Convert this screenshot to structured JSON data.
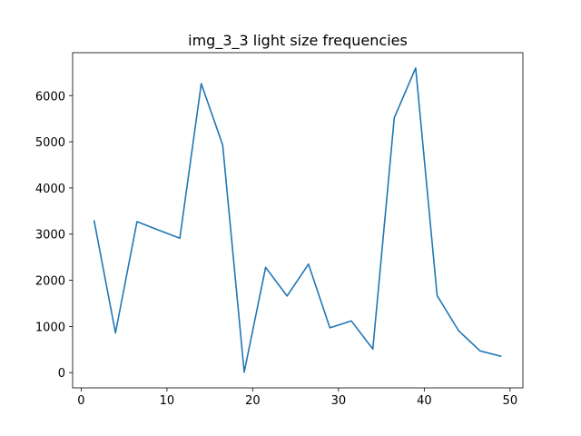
{
  "chart_data": {
    "type": "line",
    "title": "img_3_3 light size frequencies",
    "xlabel": "",
    "ylabel": "",
    "xlim": [
      -1,
      51.5
    ],
    "ylim": [
      -330,
      6930
    ],
    "xticks": [
      0,
      10,
      20,
      30,
      40,
      50
    ],
    "yticks": [
      0,
      1000,
      2000,
      3000,
      4000,
      5000,
      6000
    ],
    "grid": false,
    "series": [
      {
        "color": "#1f77b4",
        "x": [
          1.5,
          4,
          6.5,
          9,
          11.5,
          14,
          16.5,
          19,
          21.5,
          24,
          26.5,
          29,
          31.5,
          34,
          36.5,
          39,
          41.5,
          44,
          46.5,
          49
        ],
        "y": [
          3300,
          860,
          3270,
          3090,
          2910,
          6260,
          4930,
          10,
          2280,
          1660,
          2350,
          970,
          1120,
          510,
          5520,
          6600,
          1670,
          910,
          470,
          350
        ]
      }
    ]
  }
}
